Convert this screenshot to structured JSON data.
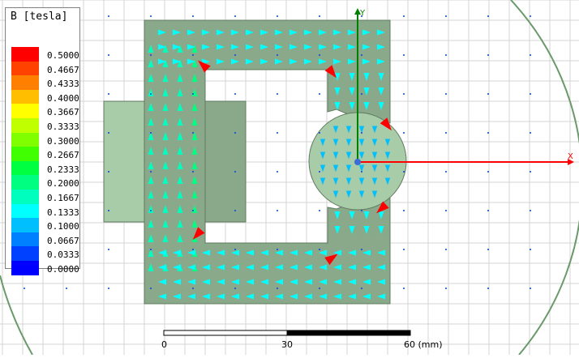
{
  "legend": {
    "title": "B [tesla]",
    "entries": [
      {
        "value": "0.5000",
        "color": "#ff0000"
      },
      {
        "value": "0.4667",
        "color": "#ff4200"
      },
      {
        "value": "0.4333",
        "color": "#ff8000"
      },
      {
        "value": "0.4000",
        "color": "#ffbe00"
      },
      {
        "value": "0.3667",
        "color": "#ffff00"
      },
      {
        "value": "0.3333",
        "color": "#bfff00"
      },
      {
        "value": "0.3000",
        "color": "#80ff00"
      },
      {
        "value": "0.2667",
        "color": "#40ff00"
      },
      {
        "value": "0.2333",
        "color": "#00ff40"
      },
      {
        "value": "0.2000",
        "color": "#00ff80"
      },
      {
        "value": "0.1667",
        "color": "#00ffbf"
      },
      {
        "value": "0.1333",
        "color": "#00ffff"
      },
      {
        "value": "0.1000",
        "color": "#00bfff"
      },
      {
        "value": "0.0667",
        "color": "#0080ff"
      },
      {
        "value": "0.0333",
        "color": "#0040ff"
      },
      {
        "value": "0.0000",
        "color": "#0000ff"
      }
    ]
  },
  "axes": {
    "y_label": "Y",
    "x_label": "X",
    "color": "#ff0000",
    "y_color": "#008000"
  },
  "scale_bar": {
    "labels": [
      "0",
      "30",
      "60 (mm)"
    ]
  },
  "colors": {
    "core": "#8aa98a",
    "coil": "#a8cca8",
    "rotor": "#a8cca8",
    "grid": "#d0d0d0"
  }
}
